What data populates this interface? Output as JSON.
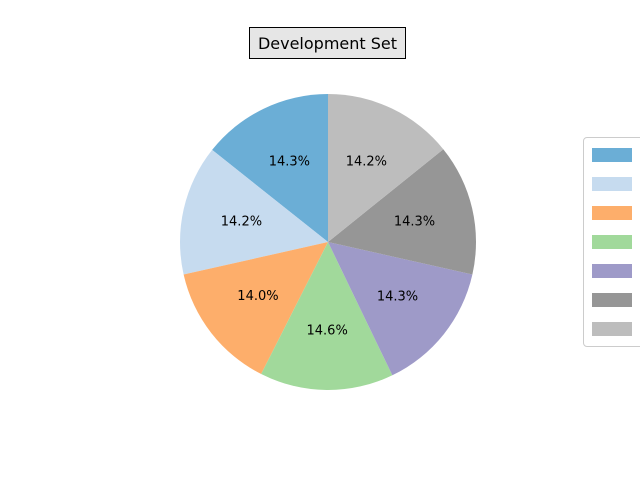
{
  "chart_data": {
    "type": "pie",
    "title": "Development Set",
    "slices": [
      {
        "label": "",
        "value": 14.3,
        "pct_label": "14.3%",
        "color": "#6baed6"
      },
      {
        "label": "",
        "value": 14.2,
        "pct_label": "14.2%",
        "color": "#c6dbef"
      },
      {
        "label": "",
        "value": 14.0,
        "pct_label": "14.0%",
        "color": "#fdae6b"
      },
      {
        "label": "",
        "value": 14.6,
        "pct_label": "14.6%",
        "color": "#a1d99b"
      },
      {
        "label": "",
        "value": 14.3,
        "pct_label": "14.3%",
        "color": "#9e9ac8"
      },
      {
        "label": "",
        "value": 14.3,
        "pct_label": "14.3%",
        "color": "#969696"
      },
      {
        "label": "",
        "value": 14.2,
        "pct_label": "14.2%",
        "color": "#bdbdbd"
      }
    ],
    "start_angle_deg": 90,
    "direction": "counterclockwise",
    "legend_placement": "right"
  }
}
